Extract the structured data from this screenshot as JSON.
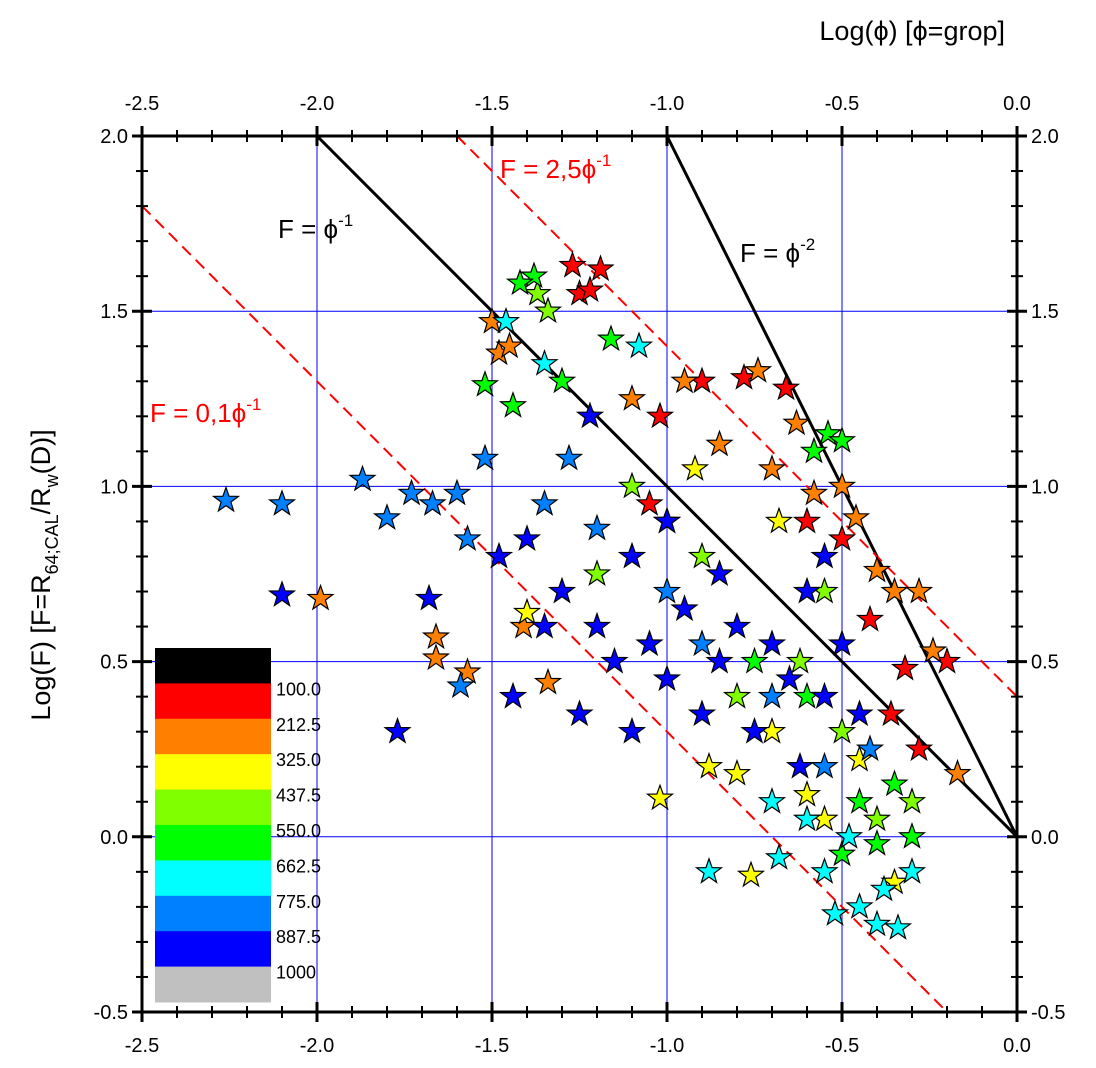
{
  "chart_data": {
    "type": "scatter",
    "x_title": "Log(ϕ) [ϕ=grop]",
    "y_title_parts": [
      "Log(F) [F=R",
      "64;CAL",
      "/R",
      "w",
      "(D)]"
    ],
    "xlim": [
      -2.5,
      0.0
    ],
    "ylim": [
      -0.5,
      2.0
    ],
    "xticks": [
      {
        "value": -2.5,
        "label": "-2.5"
      },
      {
        "value": -2.0,
        "label": "-2.0"
      },
      {
        "value": -1.5,
        "label": "-1.5"
      },
      {
        "value": -1.0,
        "label": "-1.0"
      },
      {
        "value": -0.5,
        "label": "-0.5"
      },
      {
        "value": 0.0,
        "label": "0.0"
      }
    ],
    "yticks": [
      {
        "value": -0.5,
        "label": "-0.5"
      },
      {
        "value": 0.0,
        "label": "0.0"
      },
      {
        "value": 0.5,
        "label": "0.5"
      },
      {
        "value": 1.0,
        "label": "1.0"
      },
      {
        "value": 1.5,
        "label": "1.5"
      },
      {
        "value": 2.0,
        "label": "2.0"
      }
    ],
    "xminorticks": [
      -2.4,
      -2.3,
      -2.2,
      -2.1,
      -1.9,
      -1.8,
      -1.7,
      -1.6,
      -1.4,
      -1.3,
      -1.2,
      -1.1,
      -0.9,
      -0.8,
      -0.7,
      -0.6,
      -0.4,
      -0.3,
      -0.2,
      -0.1
    ],
    "yminorticks": [
      -0.4,
      -0.3,
      -0.2,
      -0.1,
      0.1,
      0.2,
      0.3,
      0.4,
      0.6,
      0.7,
      0.8,
      0.9,
      1.1,
      1.2,
      1.3,
      1.4,
      1.6,
      1.7,
      1.8,
      1.9
    ],
    "grid": true,
    "grid_color": "#0000ff",
    "lines": [
      {
        "x": [
          -2.0,
          0.0
        ],
        "y": [
          2.0,
          0.0
        ],
        "color": "#000000",
        "dashed": false,
        "label": "F = ϕ",
        "label_sup": "-1"
      },
      {
        "x": [
          -1.0,
          0.0
        ],
        "y": [
          2.0,
          0.0
        ],
        "color": "#000000",
        "dashed": false,
        "label": "F = ϕ",
        "label_sup": "-2"
      },
      {
        "x": [
          -1.6,
          0.0
        ],
        "y": [
          2.0,
          0.4
        ],
        "color": "#ff0000",
        "dashed": true,
        "label": "F = 2,5ϕ",
        "label_sup": "-1"
      },
      {
        "x": [
          -2.5,
          -0.2
        ],
        "y": [
          1.8,
          -0.5
        ],
        "color": "#ff0000",
        "dashed": true,
        "label": "F = 0,1ϕ",
        "label_sup": "-1"
      }
    ],
    "colorbar": {
      "colors": [
        "#000000",
        "#ff0000",
        "#ff8000",
        "#ffff00",
        "#80ff00",
        "#00ff00",
        "#00ffff",
        "#0080ff",
        "#0000ff",
        "#c0c0c0"
      ],
      "ticks": [
        {
          "value": 100,
          "label": "100.0"
        },
        {
          "value": 212.5,
          "label": "212.5"
        },
        {
          "value": 325,
          "label": "325.0"
        },
        {
          "value": 437.5,
          "label": "437.5"
        },
        {
          "value": 550,
          "label": "550.0"
        },
        {
          "value": 662.5,
          "label": "662.5"
        },
        {
          "value": 775,
          "label": "775.0"
        },
        {
          "value": 887.5,
          "label": "887.5"
        },
        1000
      ]
    },
    "series": [
      {
        "color": "#ff0000",
        "x": [
          -1.27,
          -1.19,
          -1.25,
          -1.22,
          -0.78,
          -0.66,
          -0.9,
          -1.02,
          -0.5,
          -0.32,
          -0.28,
          -0.36,
          -0.42,
          -0.2,
          -0.6,
          -1.05
        ],
        "values": [
          1.63,
          1.62,
          1.55,
          1.56,
          1.31,
          1.28,
          1.3,
          1.2,
          0.85,
          0.48,
          0.25,
          0.35,
          0.62,
          0.5,
          0.9,
          0.95
        ]
      },
      {
        "color": "#ff8000",
        "x": [
          -1.5,
          -1.48,
          -1.45,
          -1.99,
          -1.66,
          -1.66,
          -1.57,
          -1.41,
          -1.34,
          -0.74,
          -0.63,
          -0.5,
          -0.46,
          -0.4,
          -0.35,
          -0.28,
          -0.17,
          -0.85,
          -0.7,
          -0.95,
          -1.1,
          -0.58,
          -0.24
        ],
        "values": [
          1.47,
          1.38,
          1.4,
          0.68,
          0.57,
          0.51,
          0.47,
          0.6,
          0.44,
          1.33,
          1.18,
          1.0,
          0.91,
          0.76,
          0.7,
          0.7,
          0.18,
          1.12,
          1.05,
          1.3,
          1.25,
          0.98,
          0.53
        ]
      },
      {
        "color": "#ffff00",
        "x": [
          -1.02,
          -0.76,
          -1.4,
          -0.88,
          -0.8,
          -0.6,
          -0.55,
          -0.35,
          -0.45,
          -0.7,
          -0.92,
          -0.68
        ],
        "values": [
          0.11,
          -0.11,
          0.64,
          0.2,
          0.18,
          0.12,
          0.05,
          -0.13,
          0.22,
          0.3,
          1.05,
          0.9
        ]
      },
      {
        "color": "#80ff00",
        "x": [
          -1.37,
          -1.34,
          -1.1,
          -0.9,
          -0.62,
          -0.5,
          -0.4,
          -0.3,
          -0.55,
          -1.2,
          -0.8
        ],
        "values": [
          1.55,
          1.5,
          1.0,
          0.8,
          0.5,
          0.3,
          0.05,
          0.1,
          0.7,
          0.75,
          0.4
        ]
      },
      {
        "color": "#00ff00",
        "x": [
          -1.38,
          -1.42,
          -1.52,
          -1.44,
          -1.16,
          -0.54,
          -0.5,
          -0.58,
          -0.6,
          -0.45,
          -0.4,
          -0.35,
          -0.5,
          -0.3,
          -1.3,
          -1.0,
          -0.75
        ],
        "values": [
          1.6,
          1.58,
          1.29,
          1.23,
          1.42,
          1.15,
          1.13,
          1.1,
          0.4,
          0.1,
          -0.02,
          0.15,
          -0.05,
          0.0,
          1.3,
          0.9,
          0.5
        ]
      },
      {
        "color": "#00ffff",
        "x": [
          -1.46,
          -0.88,
          -0.68,
          -0.55,
          -0.52,
          -0.45,
          -0.4,
          -0.34,
          -0.38,
          -0.6,
          -0.48,
          -0.3,
          -1.35,
          -1.08,
          -0.7
        ],
        "values": [
          1.47,
          -0.1,
          -0.06,
          -0.1,
          -0.22,
          -0.2,
          -0.25,
          -0.26,
          -0.15,
          0.05,
          0.0,
          -0.1,
          1.35,
          1.4,
          0.1
        ]
      },
      {
        "color": "#0080ff",
        "x": [
          -2.26,
          -2.1,
          -1.87,
          -1.8,
          -1.73,
          -1.67,
          -1.6,
          -1.52,
          -1.57,
          -1.59,
          -1.35,
          -1.2,
          -1.0,
          -0.7,
          -0.55,
          -0.42,
          -1.28,
          -0.9
        ],
        "values": [
          0.96,
          0.95,
          1.02,
          0.91,
          0.98,
          0.95,
          0.98,
          1.08,
          0.85,
          0.43,
          0.95,
          0.88,
          0.7,
          0.4,
          0.2,
          0.25,
          1.08,
          0.55
        ]
      },
      {
        "color": "#0000ff",
        "x": [
          -2.1,
          -1.77,
          -1.68,
          -1.44,
          -1.48,
          -1.4,
          -1.3,
          -1.2,
          -1.15,
          -1.05,
          -1.0,
          -0.95,
          -0.9,
          -0.85,
          -0.8,
          -0.75,
          -0.7,
          -0.65,
          -0.6,
          -0.55,
          -0.5,
          -0.45,
          -1.25,
          -1.1,
          -1.1,
          -1.22,
          -1.0,
          -0.85,
          -0.55,
          -1.35,
          -0.62
        ],
        "values": [
          0.69,
          0.3,
          0.68,
          0.4,
          0.8,
          0.85,
          0.7,
          0.6,
          0.5,
          0.55,
          0.45,
          0.65,
          0.35,
          0.5,
          0.6,
          0.3,
          0.55,
          0.45,
          0.7,
          0.4,
          0.55,
          0.35,
          0.35,
          0.3,
          0.8,
          1.2,
          0.9,
          0.75,
          0.8,
          0.6,
          0.2
        ]
      }
    ]
  }
}
